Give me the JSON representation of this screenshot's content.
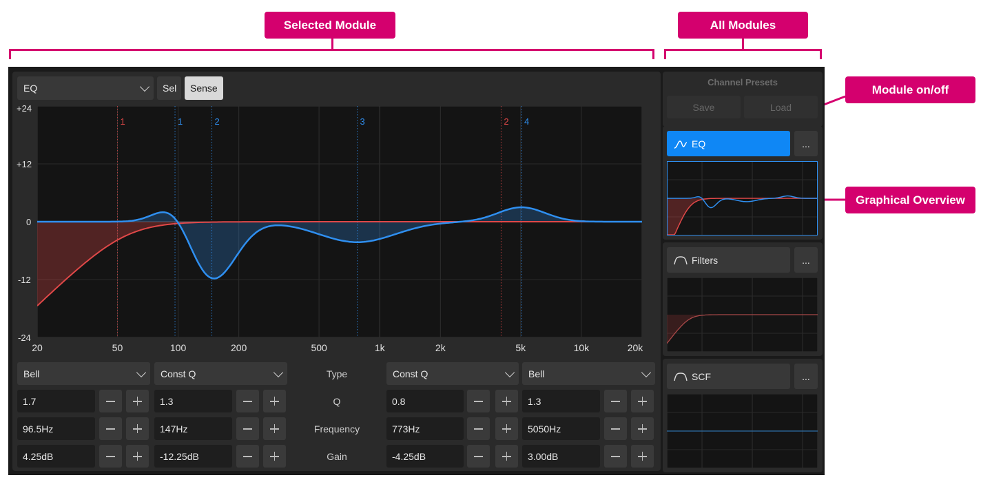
{
  "annotations": {
    "selected_module": "Selected Module",
    "all_modules": "All Modules",
    "module_on_off": "Module on/off",
    "graphical_overview": "Graphical Overview"
  },
  "toolbar": {
    "module_select": "EQ",
    "sel_label": "Sel",
    "sense_label": "Sense"
  },
  "graph": {
    "y_ticks": [
      "+24",
      "+12",
      "0",
      "-12",
      "-24"
    ],
    "x_ticks": [
      "20",
      "50",
      "100",
      "200",
      "500",
      "1k",
      "2k",
      "5k",
      "10k",
      "20k"
    ],
    "markers": [
      {
        "label": "1",
        "color": "#e04848",
        "freq": 50
      },
      {
        "label": "1",
        "color": "#2f8ff0",
        "freq": 96.5
      },
      {
        "label": "2",
        "color": "#2f8ff0",
        "freq": 147
      },
      {
        "label": "3",
        "color": "#2f8ff0",
        "freq": 773
      },
      {
        "label": "2",
        "color": "#e04848",
        "freq": 4000
      },
      {
        "label": "4",
        "color": "#2f8ff0",
        "freq": 5050
      }
    ],
    "colors": {
      "eq": "#2f8ff0",
      "filter": "#e04848"
    }
  },
  "bands": {
    "row_labels": {
      "type": "Type",
      "q": "Q",
      "frequency": "Frequency",
      "gain": "Gain"
    },
    "left": [
      {
        "type": "Bell",
        "q": "1.7",
        "freq": "96.5Hz",
        "gain": "4.25dB"
      },
      {
        "type": "Const Q",
        "q": "1.3",
        "freq": "147Hz",
        "gain": "-12.25dB"
      }
    ],
    "right": [
      {
        "type": "Const Q",
        "q": "0.8",
        "freq": "773Hz",
        "gain": "-4.25dB"
      },
      {
        "type": "Bell",
        "q": "1.3",
        "freq": "5050Hz",
        "gain": "3.00dB"
      }
    ]
  },
  "sidebar": {
    "presets_title": "Channel Presets",
    "save_label": "Save",
    "load_label": "Load",
    "modules": [
      {
        "name": "EQ",
        "icon": "eq-curve-icon",
        "active": true,
        "more": "..."
      },
      {
        "name": "Filters",
        "icon": "filter-curve-icon",
        "active": false,
        "more": "..."
      },
      {
        "name": "SCF",
        "icon": "filter-curve-icon",
        "active": false,
        "more": "..."
      }
    ]
  }
}
